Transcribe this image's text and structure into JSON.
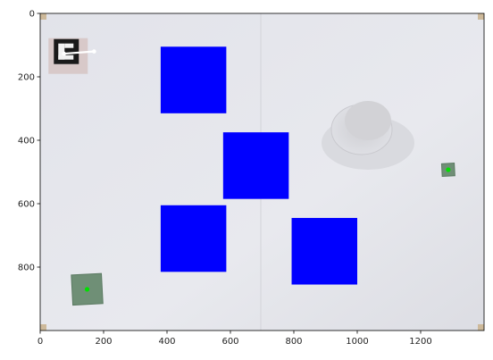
{
  "figure": {
    "x_ticks": [
      "0",
      "200",
      "400",
      "600",
      "800",
      "1000",
      "1200"
    ],
    "y_ticks": [
      "0",
      "200",
      "400",
      "600",
      "800"
    ],
    "x_range": [
      0,
      1400
    ],
    "y_range": [
      1000,
      0
    ],
    "marker_color": "#0000ff",
    "dot_color": "#00e000",
    "blue_squares": [
      {
        "x": 380,
        "y": 105,
        "w": 207,
        "h": 210
      },
      {
        "x": 577,
        "y": 375,
        "w": 207,
        "h": 210
      },
      {
        "x": 380,
        "y": 605,
        "w": 207,
        "h": 210
      },
      {
        "x": 793,
        "y": 645,
        "w": 207,
        "h": 210
      }
    ],
    "green_targets": [
      {
        "x": 148,
        "y": 870,
        "size": 95
      },
      {
        "x": 1287,
        "y": 493,
        "size": 40
      }
    ],
    "aruco_marker": {
      "x": 105,
      "y": 140
    },
    "pointer_line": {
      "x1": 75,
      "y1": 127,
      "x2": 170,
      "y2": 120
    }
  }
}
